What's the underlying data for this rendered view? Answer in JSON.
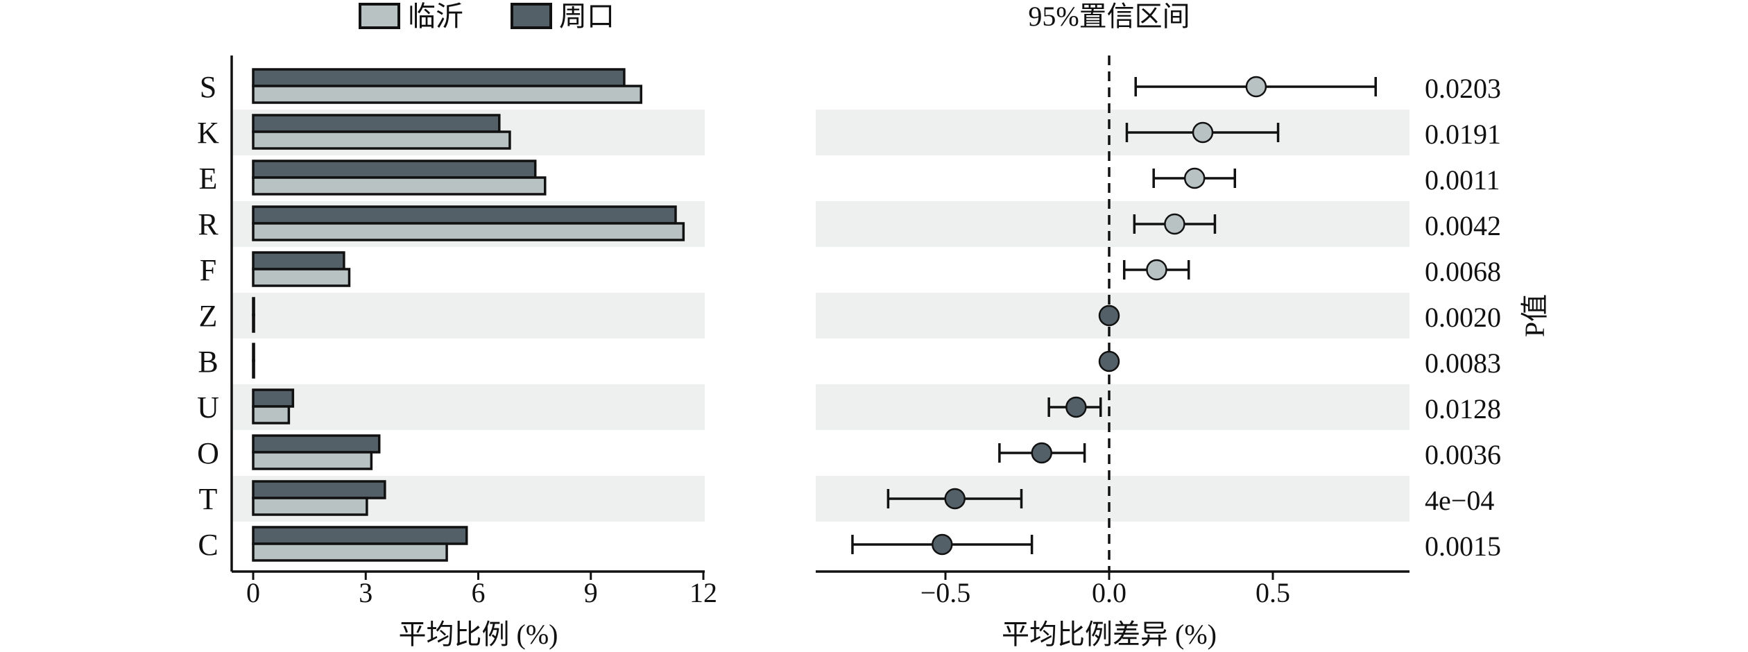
{
  "chart_data": [
    {
      "type": "bar",
      "orientation": "horizontal",
      "legend": {
        "placement": "top",
        "entries": [
          "临沂",
          "周口"
        ]
      },
      "categories": [
        "S",
        "K",
        "E",
        "R",
        "F",
        "Z",
        "B",
        "U",
        "O",
        "T",
        "C"
      ],
      "series": [
        {
          "name": "周口",
          "color": "#536068",
          "values": [
            9.89,
            6.56,
            7.52,
            11.26,
            2.42,
            0.02,
            0.02,
            1.06,
            3.36,
            3.51,
            5.69
          ]
        },
        {
          "name": "临沂",
          "color": "#b9c2c3",
          "values": [
            10.34,
            6.84,
            7.78,
            11.47,
            2.56,
            0.02,
            0.02,
            0.95,
            3.15,
            3.03,
            5.16
          ]
        }
      ],
      "xlabel": "平均比例 (%)",
      "xlim": [
        0,
        12
      ],
      "xticks": [
        "0",
        "3",
        "6",
        "9",
        "12"
      ],
      "xtick_values": [
        0,
        3,
        6,
        9,
        12
      ]
    },
    {
      "type": "scatter",
      "subtype": "forest",
      "title": "95%置信区间",
      "categories": [
        "S",
        "K",
        "E",
        "R",
        "F",
        "Z",
        "B",
        "U",
        "O",
        "T",
        "C"
      ],
      "estimate": [
        0.449,
        0.286,
        0.261,
        0.2,
        0.145,
        0.0,
        0.0,
        -0.101,
        -0.206,
        -0.471,
        -0.51
      ],
      "ci_low": [
        0.081,
        0.054,
        0.136,
        0.077,
        0.046,
        0.0,
        0.0,
        -0.184,
        -0.335,
        -0.675,
        -0.784
      ],
      "ci_high": [
        0.814,
        0.516,
        0.384,
        0.323,
        0.243,
        0.0,
        0.0,
        -0.026,
        -0.075,
        -0.268,
        -0.236
      ],
      "point_group": [
        "临沂",
        "临沂",
        "临沂",
        "临沂",
        "临沂",
        "周口",
        "周口",
        "周口",
        "周口",
        "周口",
        "周口"
      ],
      "p_values": [
        "0.0203",
        "0.0191",
        "0.0011",
        "0.0042",
        "0.0068",
        "0.0020",
        "0.0083",
        "0.0128",
        "0.0036",
        "4e−04",
        "0.0015"
      ],
      "p_label": "P值",
      "xlabel": "平均比例差异 (%)",
      "xlim": [
        -0.896,
        0.917
      ],
      "xticks": [
        "−0.5",
        "0.0",
        "0.5"
      ],
      "xtick_values": [
        -0.5,
        0,
        0.5
      ]
    }
  ],
  "colors": {
    "dark": "#536068",
    "light": "#b9c2c3",
    "stripe": "#eef0f0",
    "ink": "#111111"
  }
}
